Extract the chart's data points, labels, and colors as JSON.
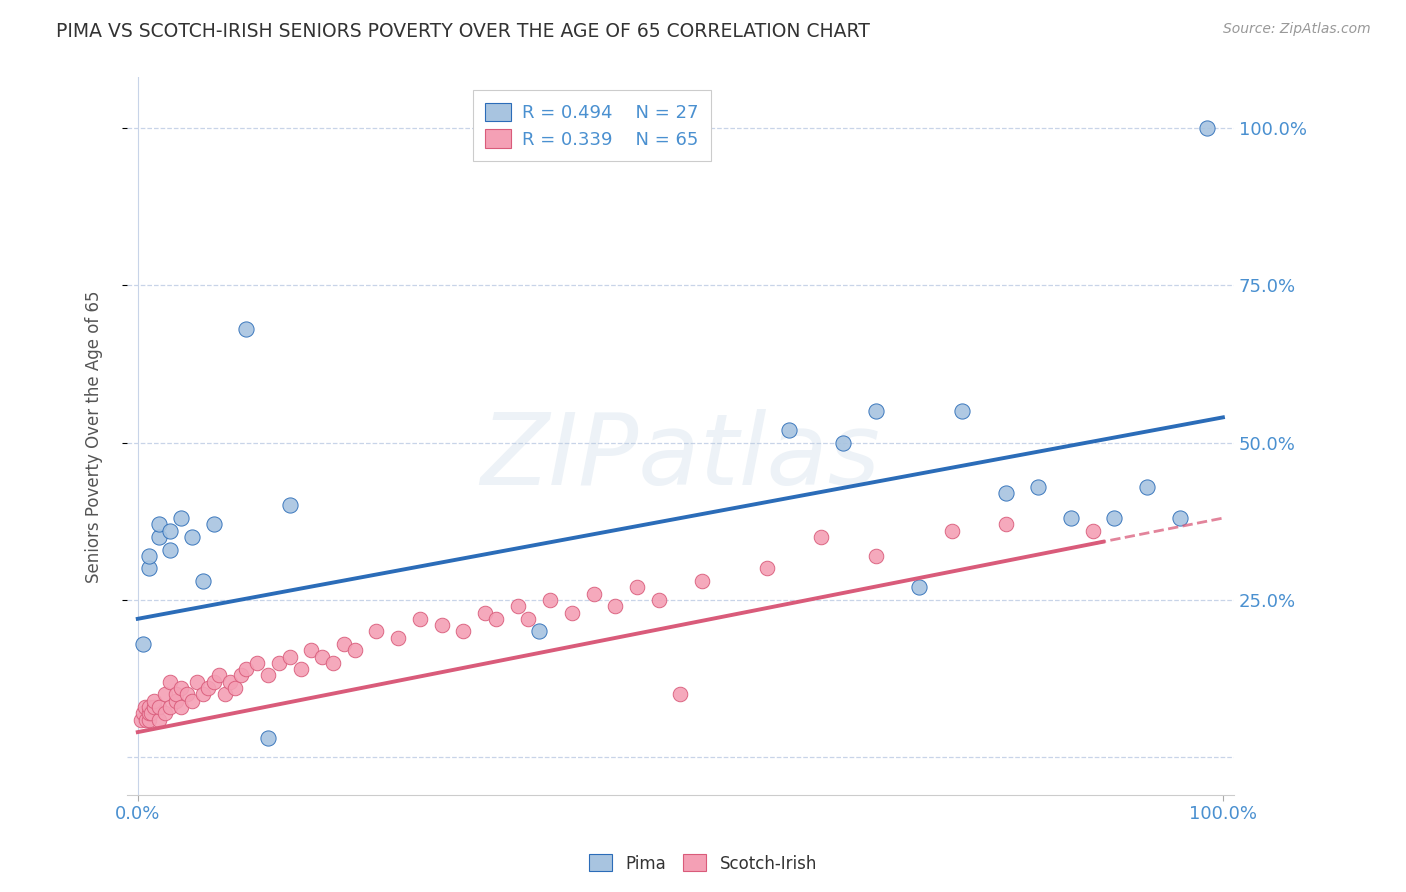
{
  "title": "PIMA VS SCOTCH-IRISH SENIORS POVERTY OVER THE AGE OF 65 CORRELATION CHART",
  "source": "Source: ZipAtlas.com",
  "ylabel": "Seniors Poverty Over the Age of 65",
  "watermark": "ZIPatlas",
  "pima_color": "#a8c4e0",
  "scotch_color": "#f4a0b5",
  "pima_line_color": "#2b6cb8",
  "scotch_line_color": "#d95b7a",
  "R_pima": 0.494,
  "N_pima": 27,
  "R_scotch": 0.339,
  "N_scotch": 65,
  "pima_x": [
    0.005,
    0.01,
    0.01,
    0.02,
    0.02,
    0.03,
    0.03,
    0.04,
    0.05,
    0.06,
    0.07,
    0.1,
    0.12,
    0.14,
    0.37,
    0.6,
    0.65,
    0.68,
    0.72,
    0.76,
    0.8,
    0.83,
    0.86,
    0.9,
    0.93,
    0.96,
    0.985
  ],
  "pima_y": [
    0.18,
    0.3,
    0.32,
    0.35,
    0.37,
    0.33,
    0.36,
    0.38,
    0.35,
    0.28,
    0.37,
    0.68,
    0.03,
    0.4,
    0.2,
    0.52,
    0.5,
    0.55,
    0.27,
    0.55,
    0.42,
    0.43,
    0.38,
    0.38,
    0.43,
    0.38,
    1.0
  ],
  "scotch_x": [
    0.003,
    0.005,
    0.007,
    0.008,
    0.01,
    0.01,
    0.01,
    0.012,
    0.015,
    0.015,
    0.02,
    0.02,
    0.025,
    0.025,
    0.03,
    0.03,
    0.035,
    0.035,
    0.04,
    0.04,
    0.045,
    0.05,
    0.055,
    0.06,
    0.065,
    0.07,
    0.075,
    0.08,
    0.085,
    0.09,
    0.095,
    0.1,
    0.11,
    0.12,
    0.13,
    0.14,
    0.15,
    0.16,
    0.17,
    0.18,
    0.19,
    0.2,
    0.22,
    0.24,
    0.26,
    0.28,
    0.3,
    0.32,
    0.33,
    0.35,
    0.36,
    0.38,
    0.4,
    0.42,
    0.44,
    0.46,
    0.48,
    0.5,
    0.52,
    0.58,
    0.63,
    0.68,
    0.75,
    0.8,
    0.88
  ],
  "scotch_y": [
    0.06,
    0.07,
    0.08,
    0.06,
    0.06,
    0.07,
    0.08,
    0.07,
    0.08,
    0.09,
    0.06,
    0.08,
    0.07,
    0.1,
    0.08,
    0.12,
    0.09,
    0.1,
    0.08,
    0.11,
    0.1,
    0.09,
    0.12,
    0.1,
    0.11,
    0.12,
    0.13,
    0.1,
    0.12,
    0.11,
    0.13,
    0.14,
    0.15,
    0.13,
    0.15,
    0.16,
    0.14,
    0.17,
    0.16,
    0.15,
    0.18,
    0.17,
    0.2,
    0.19,
    0.22,
    0.21,
    0.2,
    0.23,
    0.22,
    0.24,
    0.22,
    0.25,
    0.23,
    0.26,
    0.24,
    0.27,
    0.25,
    0.1,
    0.28,
    0.3,
    0.35,
    0.32,
    0.36,
    0.37,
    0.36
  ],
  "xlim": [
    -0.01,
    1.01
  ],
  "ylim": [
    -0.06,
    1.08
  ],
  "x_ticks": [
    0.0,
    1.0
  ],
  "x_tick_labels": [
    "0.0%",
    "100.0%"
  ],
  "y_ticks": [
    0.25,
    0.5,
    0.75,
    1.0
  ],
  "y_tick_labels": [
    "25.0%",
    "50.0%",
    "75.0%",
    "100.0%"
  ],
  "grid_ticks": [
    0.0,
    0.25,
    0.5,
    0.75,
    1.0
  ],
  "background_color": "#ffffff",
  "grid_color": "#c8d4e8",
  "title_color": "#333333",
  "axis_label_color": "#555555",
  "tick_label_color": "#4a90d0",
  "legend_R_N_color": "#4a90d0",
  "pima_intercept": 0.22,
  "pima_slope": 0.32,
  "scotch_intercept": 0.04,
  "scotch_slope": 0.34
}
